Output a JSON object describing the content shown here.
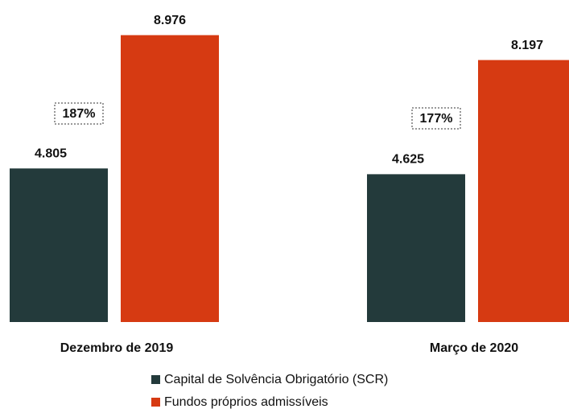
{
  "chart_data": {
    "type": "bar",
    "categories": [
      "Dezembro de 2019",
      "Março de 2020"
    ],
    "series": [
      {
        "name": "Capital de Solvência Obrigatório (SCR)",
        "color": "#233a3b",
        "values": [
          4805,
          4625
        ],
        "value_labels": [
          "4.805",
          "4.625"
        ]
      },
      {
        "name": "Fundos próprios admissíveis",
        "color": "#d63a12",
        "values": [
          8976,
          8197
        ],
        "value_labels": [
          "8.976",
          "8.197"
        ]
      }
    ],
    "annotations": [
      "187%",
      "177%"
    ],
    "ylim": [
      0,
      10000
    ]
  }
}
